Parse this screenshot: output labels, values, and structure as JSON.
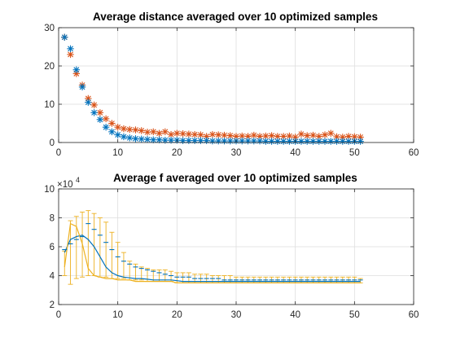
{
  "colors": {
    "blue": "#0072BD",
    "orange": "#D95319",
    "yellow": "#EDB120",
    "axes": "#262626",
    "grid": "#DEDEDE"
  },
  "chart_data": [
    {
      "type": "scatter",
      "title": "Average distance averaged over 10 optimized samples",
      "xlim": [
        0,
        60
      ],
      "ylim": [
        0,
        30
      ],
      "xticks": [
        "0",
        "10",
        "20",
        "30",
        "40",
        "50",
        "60"
      ],
      "yticks": [
        "0",
        "10",
        "20",
        "30"
      ],
      "grid": true,
      "marker": "asterisk",
      "x": [
        1,
        2,
        3,
        4,
        5,
        6,
        7,
        8,
        9,
        10,
        11,
        12,
        13,
        14,
        15,
        16,
        17,
        18,
        19,
        20,
        21,
        22,
        23,
        24,
        25,
        26,
        27,
        28,
        29,
        30,
        31,
        32,
        33,
        34,
        35,
        36,
        37,
        38,
        39,
        40,
        41,
        42,
        43,
        44,
        45,
        46,
        47,
        48,
        49,
        50,
        51
      ],
      "series": [
        {
          "color": "orange",
          "values": [
            27.5,
            23,
            18,
            15,
            11.5,
            9.8,
            7.8,
            6.2,
            5.0,
            4.0,
            3.6,
            3.4,
            3.3,
            3.1,
            2.7,
            2.8,
            2.4,
            2.8,
            2.1,
            2.4,
            2.3,
            2.2,
            2.1,
            2.0,
            1.6,
            2.1,
            2.0,
            1.9,
            1.8,
            1.6,
            1.7,
            1.6,
            1.9,
            1.6,
            1.7,
            1.8,
            1.6,
            1.6,
            1.7,
            1.4,
            2.2,
            1.8,
            1.9,
            1.6,
            2.0,
            2.4,
            1.5,
            1.4,
            1.6,
            1.5,
            1.4
          ]
        },
        {
          "color": "blue",
          "values": [
            27.5,
            24.5,
            19,
            14.5,
            10.5,
            7.8,
            6.0,
            4.0,
            2.8,
            2.0,
            1.5,
            1.2,
            1.0,
            0.9,
            0.8,
            0.7,
            0.7,
            0.6,
            0.6,
            0.6,
            0.5,
            0.5,
            0.5,
            0.5,
            0.5,
            0.4,
            0.4,
            0.4,
            0.4,
            0.4,
            0.4,
            0.4,
            0.4,
            0.4,
            0.3,
            0.3,
            0.3,
            0.3,
            0.3,
            0.3,
            0.3,
            0.3,
            0.3,
            0.3,
            0.3,
            0.3,
            0.3,
            0.3,
            0.3,
            0.3,
            0.3
          ]
        }
      ]
    },
    {
      "type": "line",
      "title": "Average f averaged over 10 optimized samples",
      "xlim": [
        0,
        60
      ],
      "ylim": [
        2,
        10
      ],
      "xticks": [
        "0",
        "10",
        "20",
        "30",
        "40",
        "50",
        "60"
      ],
      "yticks": [
        "2",
        "4",
        "6",
        "8",
        "10"
      ],
      "y_exponent": "×10",
      "y_exponent_power": "4",
      "grid": true,
      "x": [
        1,
        2,
        3,
        4,
        5,
        6,
        7,
        8,
        9,
        10,
        11,
        12,
        13,
        14,
        15,
        16,
        17,
        18,
        19,
        20,
        21,
        22,
        23,
        24,
        25,
        26,
        27,
        28,
        29,
        30,
        31,
        32,
        33,
        34,
        35,
        36,
        37,
        38,
        39,
        40,
        41,
        42,
        43,
        44,
        45,
        46,
        47,
        48,
        49,
        50,
        51
      ],
      "errorbars": {
        "color": "yellow",
        "lower": [
          4.0,
          3.4,
          3.8,
          3.9,
          4.0,
          4.0,
          3.9,
          3.9,
          3.8,
          3.8,
          3.8,
          3.7,
          3.7,
          3.7,
          3.6,
          3.6,
          3.6,
          3.6,
          3.6,
          3.5,
          3.5,
          3.5,
          3.5,
          3.5,
          3.5,
          3.5,
          3.5,
          3.5,
          3.5,
          3.5,
          3.5,
          3.5,
          3.5,
          3.5,
          3.5,
          3.5,
          3.5,
          3.5,
          3.5,
          3.5,
          3.5,
          3.5,
          3.5,
          3.5,
          3.5,
          3.5,
          3.5,
          3.5,
          3.5,
          3.5,
          3.5
        ],
        "upper": [
          5.7,
          7.8,
          8.1,
          8.4,
          8.5,
          8.3,
          8.0,
          7.7,
          7.0,
          6.3,
          5.6,
          5.0,
          4.8,
          4.6,
          4.5,
          4.4,
          4.4,
          4.4,
          4.3,
          4.2,
          4.2,
          4.2,
          4.1,
          4.1,
          4.1,
          4.0,
          4.0,
          4.0,
          4.0,
          3.9,
          3.9,
          3.9,
          3.9,
          3.9,
          3.9,
          3.9,
          3.9,
          3.9,
          3.9,
          3.9,
          3.9,
          3.9,
          3.9,
          3.9,
          3.9,
          3.9,
          3.9,
          3.9,
          3.9,
          3.9,
          3.8
        ]
      },
      "series": [
        {
          "color": "blue",
          "style": "line",
          "values": [
            5.6,
            6.5,
            6.7,
            6.8,
            6.5,
            6.0,
            5.3,
            4.6,
            4.2,
            4.0,
            3.9,
            3.85,
            3.8,
            3.8,
            3.75,
            3.7,
            3.7,
            3.7,
            3.7,
            3.65,
            3.6,
            3.6,
            3.6,
            3.6,
            3.6,
            3.6,
            3.6,
            3.6,
            3.6,
            3.6,
            3.6,
            3.6,
            3.6,
            3.6,
            3.6,
            3.6,
            3.6,
            3.6,
            3.6,
            3.6,
            3.6,
            3.6,
            3.6,
            3.6,
            3.6,
            3.6,
            3.6,
            3.6,
            3.6,
            3.6,
            3.6
          ]
        },
        {
          "color": "yellow",
          "style": "line",
          "values": [
            4.6,
            7.6,
            7.4,
            6.2,
            4.5,
            4.0,
            3.9,
            3.8,
            3.8,
            3.7,
            3.7,
            3.7,
            3.6,
            3.6,
            3.6,
            3.6,
            3.6,
            3.6,
            3.6,
            3.5,
            3.5,
            3.5,
            3.5,
            3.5,
            3.5,
            3.5,
            3.5,
            3.5,
            3.5,
            3.5,
            3.5,
            3.5,
            3.5,
            3.5,
            3.5,
            3.5,
            3.5,
            3.5,
            3.5,
            3.5,
            3.5,
            3.5,
            3.5,
            3.5,
            3.5,
            3.5,
            3.5,
            3.5,
            3.5,
            3.5,
            3.5
          ]
        },
        {
          "color": "blue",
          "style": "dash-marker",
          "values": [
            5.8,
            6.2,
            6.5,
            6.7,
            7.6,
            7.2,
            6.8,
            6.3,
            5.8,
            5.3,
            5.0,
            4.8,
            4.6,
            4.5,
            4.4,
            4.3,
            4.2,
            4.1,
            4.0,
            3.9,
            3.9,
            3.9,
            3.8,
            3.8,
            3.8,
            3.8,
            3.8,
            3.7,
            3.7,
            3.7,
            3.7,
            3.7,
            3.7,
            3.7,
            3.7,
            3.7,
            3.7,
            3.7,
            3.7,
            3.7,
            3.7,
            3.7,
            3.7,
            3.7,
            3.7,
            3.7,
            3.7,
            3.7,
            3.7,
            3.7,
            3.7
          ]
        }
      ]
    }
  ]
}
